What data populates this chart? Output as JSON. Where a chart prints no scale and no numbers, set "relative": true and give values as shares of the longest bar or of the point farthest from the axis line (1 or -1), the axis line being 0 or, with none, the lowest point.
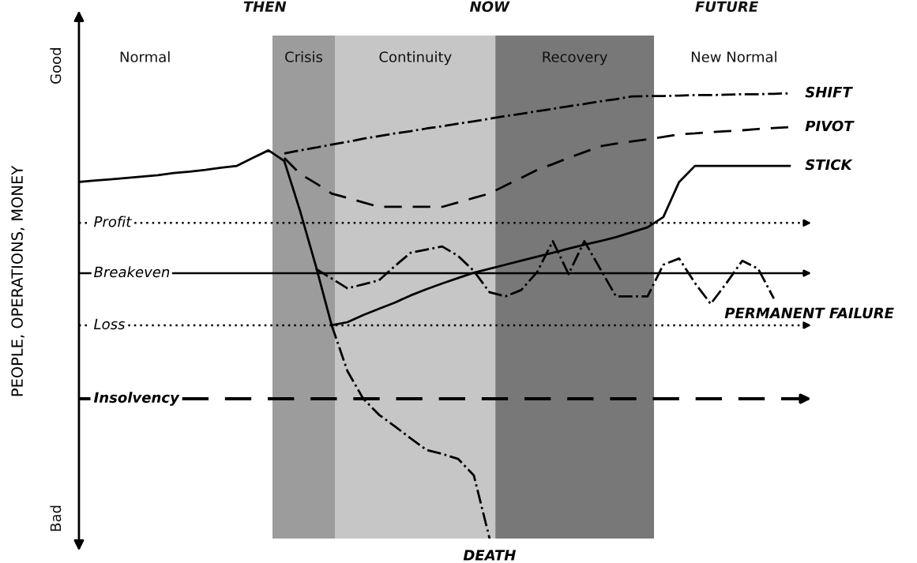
{
  "chart_data": {
    "type": "line",
    "relative": true,
    "ylabel": "PEOPLE, OPERATIONS, MONEY",
    "tick_labels": false,
    "categories": [
      null,
      null,
      null,
      null,
      null,
      null,
      null,
      null,
      null,
      null,
      null,
      null,
      null,
      null,
      null,
      null,
      null,
      null,
      null,
      null,
      null,
      null,
      null,
      null,
      null,
      null,
      null,
      null,
      null,
      null,
      null,
      null,
      null,
      null,
      null,
      null,
      null,
      null,
      null,
      null,
      null,
      null,
      null,
      null,
      null,
      null,
      null
    ],
    "series": [
      {
        "name": "SHIFT",
        "color": "#000000",
        "line_style": "dashdot",
        "values": [
          null,
          null,
          null,
          null,
          null,
          null,
          null,
          null,
          null,
          null,
          null,
          null,
          null,
          0.865,
          0.872,
          0.878,
          0.885,
          0.891,
          0.898,
          0.904,
          0.91,
          0.915,
          0.921,
          0.926,
          0.932,
          0.937,
          0.943,
          0.949,
          0.954,
          0.96,
          0.965,
          0.971,
          0.976,
          0.982,
          0.987,
          0.993,
          0.994,
          0.994,
          0.995,
          0.996,
          0.996,
          0.997,
          0.998,
          0.998,
          0.999,
          1,
          null
        ]
      },
      {
        "name": "PIVOT",
        "color": "#000000",
        "line_style": "dashed",
        "values": [
          null,
          null,
          null,
          null,
          null,
          null,
          null,
          null,
          null,
          null,
          null,
          null,
          null,
          0.855,
          0.819,
          0.798,
          0.775,
          0.765,
          0.755,
          0.745,
          0.745,
          0.745,
          0.745,
          0.745,
          0.755,
          0.765,
          0.775,
          0.793,
          0.81,
          0.828,
          0.841,
          0.855,
          0.868,
          0.881,
          0.887,
          0.892,
          0.897,
          0.902,
          0.908,
          0.91,
          0.913,
          0.915,
          0.917,
          0.92,
          0.922,
          0.924,
          null
        ]
      },
      {
        "name": "STICK",
        "color": "#000000",
        "line_style": "solid",
        "values": [
          0.801,
          0.804,
          0.807,
          0.81,
          0.813,
          0.816,
          0.821,
          0.824,
          0.828,
          0.833,
          0.837,
          0.855,
          0.872,
          0.848,
          0.736,
          0.612,
          0.479,
          0.486,
          0.502,
          0.516,
          0.53,
          0.546,
          0.56,
          0.573,
          0.585,
          0.597,
          0.606,
          0.615,
          0.624,
          0.633,
          0.642,
          0.651,
          0.66,
          0.668,
          0.677,
          0.688,
          0.699,
          0.722,
          0.801,
          0.837,
          0.837,
          0.837,
          0.837,
          0.837,
          0.837,
          0.837,
          null
        ]
      },
      {
        "name": "PERMANENT FAILURE",
        "color": "#000000",
        "line_style": "dashdot",
        "values": [
          null,
          null,
          null,
          null,
          null,
          null,
          null,
          null,
          null,
          null,
          null,
          null,
          null,
          null,
          null,
          0.606,
          0.584,
          0.562,
          0.571,
          0.58,
          0.612,
          0.642,
          0.649,
          0.656,
          0.635,
          0.601,
          0.553,
          0.544,
          0.558,
          0.598,
          0.668,
          0.594,
          0.668,
          0.606,
          0.544,
          0.544,
          0.544,
          0.615,
          0.629,
          0.574,
          0.527,
          0.574,
          0.624,
          0.606,
          0.539,
          null,
          null
        ]
      },
      {
        "name": "DEATH",
        "color": "#000000",
        "line_style": "dashdot",
        "values": [
          null,
          null,
          null,
          null,
          null,
          null,
          null,
          null,
          null,
          null,
          null,
          null,
          null,
          null,
          null,
          null,
          0.479,
          0.376,
          0.314,
          0.278,
          0.252,
          0.225,
          0.199,
          0.19,
          0.179,
          0.142,
          0,
          null,
          null,
          null,
          null,
          null,
          null,
          null,
          null,
          null,
          null,
          null,
          null,
          null,
          null,
          null,
          null,
          null,
          null,
          null,
          null
        ]
      }
    ],
    "ref_lines": [
      {
        "axis": "y",
        "value": 0.709,
        "label": "Profit",
        "line_style": "dotted"
      },
      {
        "axis": "y",
        "value": 0.596,
        "label": "Breakeven",
        "line_style": "solid"
      },
      {
        "axis": "y",
        "value": 0.479,
        "label": "Loss",
        "line_style": "dotted"
      },
      {
        "axis": "y",
        "value": 0.314,
        "label": "Insolvency",
        "line_style": "dashed"
      }
    ],
    "annotations": [
      "Normal",
      "Crisis",
      "Continuity",
      "Recovery",
      "New Normal",
      "THEN",
      "NOW",
      "FUTURE",
      "Good",
      "Bad"
    ]
  }
}
